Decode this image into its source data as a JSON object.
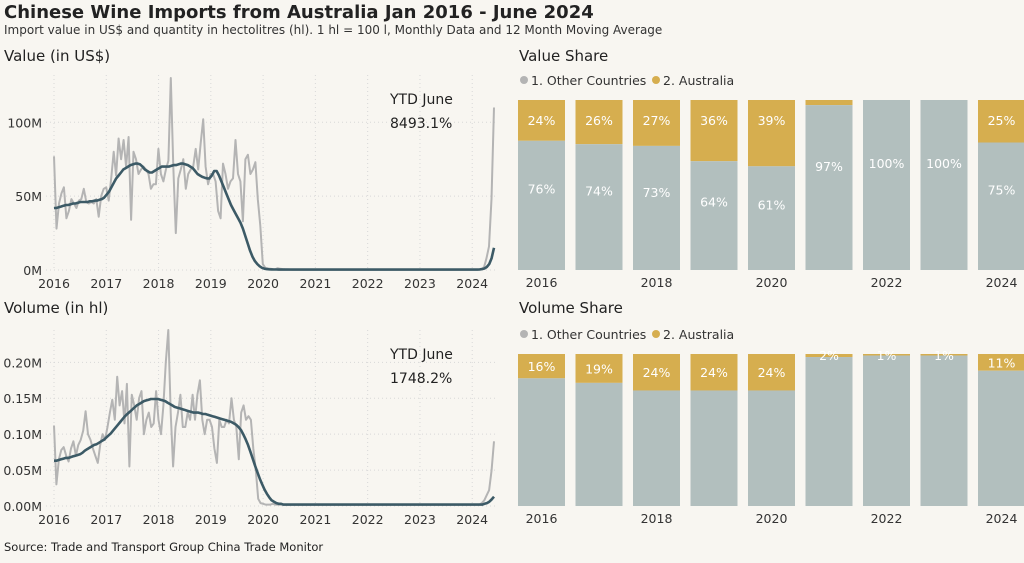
{
  "title": "Chinese Wine Imports from Australia Jan 2016 - June 2024",
  "subtitle": "Import value in US$ and quantity in hectolitres (hl). 1 hl = 100 l, Monthly Data and 12 Month Moving Average",
  "source": "Source: Trade and Transport Group China Trade Monitor",
  "colors": {
    "background": "#f8f6f1",
    "monthly_line": "#b4b4b4",
    "moving_average": "#3c5a66",
    "other_countries": "#b2bfbe",
    "australia": "#d6ae4f",
    "grid": "#d8d8d8"
  },
  "chart_data": [
    {
      "type": "line",
      "title": "Value (in US$)",
      "annotation": [
        "YTD June",
        "8493.1%"
      ],
      "x_ticks": [
        "2016",
        "2017",
        "2018",
        "2019",
        "2020",
        "2021",
        "2022",
        "2023",
        "2024"
      ],
      "y_ticks": [
        "0M",
        "50M",
        "100M"
      ],
      "ylim": [
        0,
        132000000
      ],
      "x_start": "2016-01",
      "x_end": "2024-06",
      "grid": true,
      "series": [
        {
          "name": "Monthly",
          "values": [
            77000000,
            28000000,
            45000000,
            52000000,
            56000000,
            35000000,
            40000000,
            48000000,
            45000000,
            42000000,
            47000000,
            48000000,
            55000000,
            46000000,
            45000000,
            46000000,
            45000000,
            48000000,
            36000000,
            50000000,
            55000000,
            56000000,
            47000000,
            62000000,
            80000000,
            64000000,
            89000000,
            75000000,
            88000000,
            70000000,
            90000000,
            34000000,
            80000000,
            75000000,
            65000000,
            68000000,
            70000000,
            68000000,
            65000000,
            55000000,
            58000000,
            58000000,
            82000000,
            65000000,
            60000000,
            68000000,
            74000000,
            130000000,
            70000000,
            25000000,
            62000000,
            68000000,
            75000000,
            55000000,
            65000000,
            68000000,
            70000000,
            82000000,
            68000000,
            86000000,
            102000000,
            70000000,
            58000000,
            65000000,
            65000000,
            60000000,
            40000000,
            35000000,
            72000000,
            65000000,
            55000000,
            60000000,
            62000000,
            88000000,
            65000000,
            60000000,
            33000000,
            75000000,
            78000000,
            65000000,
            68000000,
            73000000,
            48000000,
            30000000,
            4000000,
            1500000,
            1000000,
            800000,
            600000,
            500000,
            1200000,
            800000,
            600000,
            500000,
            400000,
            350000,
            300000,
            300000,
            300000,
            300000,
            300000,
            300000,
            300000,
            300000,
            300000,
            300000,
            300000,
            300000,
            300000,
            300000,
            300000,
            300000,
            300000,
            300000,
            300000,
            300000,
            300000,
            300000,
            300000,
            300000,
            300000,
            300000,
            300000,
            300000,
            300000,
            300000,
            300000,
            300000,
            300000,
            300000,
            300000,
            300000,
            300000,
            300000,
            300000,
            300000,
            300000,
            300000,
            300000,
            300000,
            300000,
            300000,
            300000,
            300000,
            300000,
            300000,
            300000,
            300000,
            300000,
            300000,
            300000,
            300000,
            300000,
            300000,
            300000,
            300000,
            300000,
            300000,
            300000,
            300000,
            300000,
            300000,
            300000,
            300000,
            300000,
            300000,
            300000,
            300000,
            300000,
            300000,
            300000,
            300000,
            600000,
            2000000,
            8000000,
            16000000,
            48000000,
            110000000
          ]
        },
        {
          "name": "12 Month Moving Average",
          "values": [
            42000000,
            42000000,
            42500000,
            43000000,
            43500000,
            44000000,
            44000000,
            44500000,
            45000000,
            45000000,
            45500000,
            46000000,
            46000000,
            46000000,
            46000000,
            46500000,
            46500000,
            47000000,
            47000000,
            47500000,
            48000000,
            49000000,
            51000000,
            53000000,
            56000000,
            59000000,
            62000000,
            64000000,
            66000000,
            68000000,
            69000000,
            70000000,
            71000000,
            71500000,
            72000000,
            72000000,
            71500000,
            70000000,
            68000000,
            67000000,
            66000000,
            66000000,
            67000000,
            68000000,
            69000000,
            70000000,
            70000000,
            70000000,
            70000000,
            70500000,
            71000000,
            71000000,
            71500000,
            72000000,
            72000000,
            71500000,
            71000000,
            70000000,
            69000000,
            67000000,
            65000000,
            64000000,
            63000000,
            62500000,
            62000000,
            62000000,
            64000000,
            67000000,
            67000000,
            64000000,
            60000000,
            56000000,
            52000000,
            48000000,
            44000000,
            41000000,
            38000000,
            35000000,
            32000000,
            28000000,
            23000000,
            18000000,
            13000000,
            9000000,
            6000000,
            4000000,
            2500000,
            1500000,
            900000,
            600000,
            500000,
            400000,
            350000,
            320000,
            300000,
            300000,
            300000,
            300000,
            300000,
            300000,
            300000,
            300000,
            300000,
            300000,
            300000,
            300000,
            300000,
            300000,
            300000,
            300000,
            300000,
            300000,
            300000,
            300000,
            300000,
            300000,
            300000,
            300000,
            300000,
            300000,
            300000,
            300000,
            300000,
            300000,
            300000,
            300000,
            300000,
            300000,
            300000,
            300000,
            300000,
            300000,
            300000,
            300000,
            300000,
            300000,
            300000,
            300000,
            300000,
            300000,
            300000,
            300000,
            300000,
            300000,
            300000,
            300000,
            300000,
            300000,
            300000,
            300000,
            300000,
            300000,
            300000,
            300000,
            300000,
            300000,
            300000,
            300000,
            300000,
            300000,
            300000,
            300000,
            300000,
            300000,
            300000,
            300000,
            300000,
            300000,
            300000,
            300000,
            300000,
            300000,
            300000,
            300000,
            300000,
            300000,
            300000,
            300000,
            400000,
            600000,
            1000000,
            2000000,
            4000000,
            8000000,
            15000000
          ]
        }
      ]
    },
    {
      "type": "bar",
      "stacked": true,
      "title": "Value Share",
      "legend_position": "top",
      "legend": [
        "1. Other Countries",
        "2. Australia"
      ],
      "categories": [
        "2016",
        "2017",
        "2018",
        "2019",
        "2020",
        "2021",
        "2022",
        "2023",
        "2024"
      ],
      "x_tick_labels": [
        "2016",
        "",
        "2018",
        "",
        "2020",
        "",
        "2022",
        "",
        "2024"
      ],
      "series": [
        {
          "name": "1. Other Countries",
          "values": [
            76,
            74,
            73,
            64,
            61,
            97,
            100,
            100,
            75
          ],
          "labels": [
            "76%",
            "74%",
            "73%",
            "64%",
            "61%",
            "97%",
            "100%",
            "100%",
            "75%"
          ]
        },
        {
          "name": "2. Australia",
          "values": [
            24,
            26,
            27,
            36,
            39,
            3,
            0,
            0,
            25
          ],
          "labels": [
            "24%",
            "26%",
            "27%",
            "36%",
            "39%",
            "",
            "",
            "",
            "25%"
          ]
        }
      ]
    },
    {
      "type": "line",
      "title": "Volume (in hl)",
      "annotation": [
        "YTD June",
        "1748.2%"
      ],
      "x_ticks": [
        "2016",
        "2017",
        "2018",
        "2019",
        "2020",
        "2021",
        "2022",
        "2023",
        "2024"
      ],
      "y_ticks": [
        "0.00M",
        "0.05M",
        "0.10M",
        "0.15M",
        "0.20M"
      ],
      "ylim": [
        0,
        0.245
      ],
      "x_start": "2016-01",
      "x_end": "2024-06",
      "grid": true,
      "series": [
        {
          "name": "Monthly",
          "values": [
            0.112,
            0.03,
            0.065,
            0.078,
            0.082,
            0.07,
            0.062,
            0.08,
            0.09,
            0.07,
            0.085,
            0.092,
            0.105,
            0.132,
            0.1,
            0.092,
            0.08,
            0.07,
            0.06,
            0.085,
            0.1,
            0.092,
            0.11,
            0.13,
            0.148,
            0.12,
            0.18,
            0.14,
            0.16,
            0.115,
            0.17,
            0.055,
            0.155,
            0.14,
            0.12,
            0.15,
            0.16,
            0.1,
            0.12,
            0.13,
            0.11,
            0.115,
            0.16,
            0.12,
            0.1,
            0.14,
            0.2,
            0.245,
            0.13,
            0.055,
            0.11,
            0.13,
            0.155,
            0.11,
            0.11,
            0.13,
            0.12,
            0.155,
            0.12,
            0.155,
            0.175,
            0.12,
            0.1,
            0.12,
            0.12,
            0.11,
            0.08,
            0.06,
            0.12,
            0.11,
            0.11,
            0.12,
            0.115,
            0.15,
            0.12,
            0.11,
            0.065,
            0.13,
            0.14,
            0.12,
            0.125,
            0.12,
            0.08,
            0.05,
            0.01,
            0.004,
            0.003,
            0.002,
            0.002,
            0.002,
            0.003,
            0.002,
            0.002,
            0.002,
            0.002,
            0.002,
            0.002,
            0.002,
            0.002,
            0.002,
            0.002,
            0.002,
            0.002,
            0.002,
            0.002,
            0.002,
            0.002,
            0.002,
            0.002,
            0.002,
            0.002,
            0.002,
            0.002,
            0.002,
            0.002,
            0.002,
            0.002,
            0.002,
            0.002,
            0.002,
            0.002,
            0.002,
            0.002,
            0.002,
            0.002,
            0.002,
            0.002,
            0.002,
            0.002,
            0.002,
            0.002,
            0.002,
            0.002,
            0.002,
            0.002,
            0.002,
            0.002,
            0.002,
            0.002,
            0.002,
            0.002,
            0.002,
            0.002,
            0.002,
            0.002,
            0.002,
            0.002,
            0.002,
            0.002,
            0.002,
            0.002,
            0.002,
            0.002,
            0.002,
            0.002,
            0.002,
            0.002,
            0.002,
            0.002,
            0.002,
            0.002,
            0.002,
            0.002,
            0.002,
            0.002,
            0.002,
            0.002,
            0.002,
            0.002,
            0.002,
            0.002,
            0.002,
            0.002,
            0.002,
            0.002,
            0.002,
            0.004,
            0.008,
            0.015,
            0.022,
            0.05,
            0.09
          ]
        },
        {
          "name": "12 Month Moving Average",
          "values": [
            0.063,
            0.063,
            0.064,
            0.065,
            0.066,
            0.067,
            0.067,
            0.068,
            0.069,
            0.07,
            0.071,
            0.072,
            0.074,
            0.077,
            0.079,
            0.081,
            0.083,
            0.085,
            0.086,
            0.088,
            0.09,
            0.092,
            0.095,
            0.098,
            0.101,
            0.105,
            0.109,
            0.113,
            0.117,
            0.121,
            0.125,
            0.128,
            0.131,
            0.134,
            0.137,
            0.14,
            0.142,
            0.144,
            0.146,
            0.147,
            0.148,
            0.149,
            0.149,
            0.149,
            0.149,
            0.148,
            0.147,
            0.146,
            0.144,
            0.142,
            0.14,
            0.138,
            0.137,
            0.136,
            0.135,
            0.134,
            0.133,
            0.132,
            0.131,
            0.13,
            0.13,
            0.13,
            0.129,
            0.128,
            0.128,
            0.127,
            0.126,
            0.125,
            0.124,
            0.123,
            0.122,
            0.121,
            0.12,
            0.119,
            0.118,
            0.117,
            0.115,
            0.113,
            0.11,
            0.106,
            0.1,
            0.093,
            0.085,
            0.076,
            0.066,
            0.056,
            0.047,
            0.038,
            0.03,
            0.023,
            0.017,
            0.012,
            0.008,
            0.006,
            0.004,
            0.003,
            0.003,
            0.002,
            0.002,
            0.002,
            0.002,
            0.002,
            0.002,
            0.002,
            0.002,
            0.002,
            0.002,
            0.002,
            0.002,
            0.002,
            0.002,
            0.002,
            0.002,
            0.002,
            0.002,
            0.002,
            0.002,
            0.002,
            0.002,
            0.002,
            0.002,
            0.002,
            0.002,
            0.002,
            0.002,
            0.002,
            0.002,
            0.002,
            0.002,
            0.002,
            0.002,
            0.002,
            0.002,
            0.002,
            0.002,
            0.002,
            0.002,
            0.002,
            0.002,
            0.002,
            0.002,
            0.002,
            0.002,
            0.002,
            0.002,
            0.002,
            0.002,
            0.002,
            0.002,
            0.002,
            0.002,
            0.002,
            0.002,
            0.002,
            0.002,
            0.002,
            0.002,
            0.002,
            0.002,
            0.002,
            0.002,
            0.002,
            0.002,
            0.002,
            0.002,
            0.002,
            0.002,
            0.002,
            0.002,
            0.002,
            0.002,
            0.002,
            0.002,
            0.002,
            0.002,
            0.002,
            0.002,
            0.002,
            0.002,
            0.002,
            0.002,
            0.002,
            0.003,
            0.004,
            0.006,
            0.009,
            0.013
          ]
        }
      ]
    },
    {
      "type": "bar",
      "stacked": true,
      "title": "Volume Share",
      "legend_position": "top",
      "legend": [
        "1. Other Countries",
        "2. Australia"
      ],
      "categories": [
        "2016",
        "2017",
        "2018",
        "2019",
        "2020",
        "2021",
        "2022",
        "2023",
        "2024"
      ],
      "x_tick_labels": [
        "2016",
        "",
        "2018",
        "",
        "2020",
        "",
        "2022",
        "",
        "2024"
      ],
      "series": [
        {
          "name": "1. Other Countries",
          "values": [
            84,
            81,
            76,
            76,
            76,
            98,
            99,
            99,
            89
          ],
          "labels": [
            "",
            "",
            "",
            "",
            "",
            "",
            "",
            "",
            ""
          ]
        },
        {
          "name": "2. Australia",
          "values": [
            16,
            19,
            24,
            24,
            24,
            2,
            1,
            1,
            11
          ],
          "labels": [
            "16%",
            "19%",
            "24%",
            "24%",
            "24%",
            "2%",
            "1%",
            "1%",
            "11%"
          ]
        }
      ]
    }
  ]
}
